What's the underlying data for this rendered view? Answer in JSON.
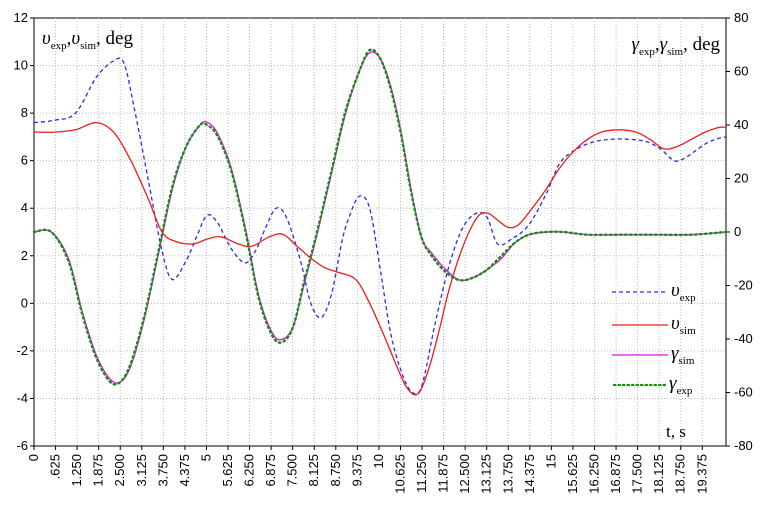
{
  "chart_data": {
    "type": "line",
    "ylabel_left": {
      "main1": "υ",
      "sub1": "exp",
      "sep": ",",
      "main2": "υ",
      "sub2": "sim",
      "unit": ", deg"
    },
    "ylabel_right": {
      "main1": "γ",
      "sub1": "exp",
      "sep": ",",
      "main2": "γ",
      "sub2": "sim",
      "unit": ", deg"
    },
    "xlabel": "t, s",
    "xlim": [
      0,
      20
    ],
    "ylim_left": [
      -6,
      12
    ],
    "ylim_right": [
      -80,
      80
    ],
    "y_ticks_left": [
      "-6",
      "-4",
      "-2",
      "0",
      "2",
      "4",
      "6",
      "8",
      "10",
      "12"
    ],
    "y_ticks_right": [
      "-80",
      "-60",
      "-40",
      "-20",
      "0",
      "20",
      "40",
      "60",
      "80"
    ],
    "x_ticks": [
      "0",
      ".625",
      "1.250",
      "1.875",
      "2.500",
      "3.125",
      "3.750",
      "4.375",
      "5",
      "5.625",
      "6.250",
      "6.875",
      "7.500",
      "8.125",
      "8.750",
      "9.375",
      "10",
      "10.625",
      "11.250",
      "11.875",
      "12.500",
      "13.125",
      "13.750",
      "14.375",
      "15",
      "15.625",
      "16.250",
      "16.875",
      "17.500",
      "18.125",
      "18.750",
      "19.375"
    ],
    "grid": true,
    "legend_position": "right",
    "series": [
      {
        "name": {
          "main": "υ",
          "sub": "exp"
        },
        "axis": "left",
        "color": "#2a2ae8",
        "style": "dashed",
        "x": [
          0,
          0.6,
          1.2,
          1.8,
          2.3,
          2.6,
          2.9,
          3.3,
          3.7,
          4.0,
          4.4,
          4.7,
          5.0,
          5.3,
          5.7,
          6.1,
          6.4,
          6.7,
          7.0,
          7.3,
          7.7,
          8.0,
          8.3,
          8.6,
          8.9,
          9.1,
          9.4,
          9.7,
          10.0,
          10.3,
          10.6,
          10.9,
          11.2,
          11.6,
          12.0,
          12.4,
          12.8,
          13.1,
          13.4,
          13.8,
          14.3,
          14.8,
          15.2,
          15.7,
          16.2,
          16.7,
          17.2,
          17.7,
          18.1,
          18.5,
          18.8,
          19.1,
          19.4,
          19.7,
          20.0
        ],
        "y": [
          7.6,
          7.7,
          8.0,
          9.5,
          10.2,
          10.1,
          8.2,
          5.2,
          2.2,
          1.0,
          1.8,
          2.8,
          3.7,
          3.4,
          2.3,
          1.7,
          2.2,
          3.2,
          4.0,
          3.6,
          1.8,
          0.0,
          -0.6,
          0.4,
          2.6,
          3.6,
          4.5,
          4.0,
          1.5,
          -1.2,
          -2.8,
          -3.7,
          -3.5,
          -0.8,
          1.6,
          3.2,
          3.8,
          3.6,
          2.5,
          2.7,
          3.3,
          4.6,
          5.9,
          6.5,
          6.8,
          6.9,
          6.9,
          6.8,
          6.5,
          6.0,
          6.1,
          6.4,
          6.7,
          6.9,
          7.0
        ]
      },
      {
        "name": {
          "main": "υ",
          "sub": "sim"
        },
        "axis": "left",
        "color": "#ee1c1c",
        "style": "solid",
        "x": [
          0,
          0.6,
          1.2,
          1.8,
          2.3,
          2.8,
          3.3,
          3.7,
          4.1,
          4.6,
          5.0,
          5.4,
          5.9,
          6.3,
          6.8,
          7.2,
          7.6,
          8.0,
          8.4,
          8.8,
          9.3,
          9.7,
          10.1,
          10.5,
          10.8,
          11.1,
          11.4,
          11.7,
          12.0,
          12.4,
          12.8,
          13.1,
          13.4,
          13.7,
          14.0,
          14.4,
          14.8,
          15.2,
          15.6,
          16.0,
          16.4,
          16.9,
          17.4,
          17.8,
          18.2,
          18.6,
          19.0,
          19.4,
          19.8,
          20.0
        ],
        "y": [
          7.2,
          7.2,
          7.3,
          7.6,
          7.2,
          6.0,
          4.4,
          3.0,
          2.6,
          2.5,
          2.7,
          2.8,
          2.5,
          2.4,
          2.8,
          2.9,
          2.4,
          1.9,
          1.5,
          1.3,
          1.0,
          0.0,
          -1.3,
          -2.7,
          -3.6,
          -3.8,
          -2.8,
          -1.2,
          0.6,
          2.4,
          3.6,
          3.8,
          3.5,
          3.2,
          3.3,
          4.0,
          4.8,
          5.7,
          6.4,
          6.9,
          7.2,
          7.3,
          7.2,
          6.9,
          6.5,
          6.6,
          6.9,
          7.2,
          7.4,
          7.4
        ]
      },
      {
        "name": {
          "main": "γ",
          "sub": "sim"
        },
        "axis": "right",
        "color": "#e016e0",
        "style": "solid",
        "x": [
          0,
          0.5,
          1.0,
          1.4,
          1.8,
          2.2,
          2.5,
          2.8,
          3.2,
          3.6,
          4.0,
          4.4,
          4.8,
          5.0,
          5.3,
          5.7,
          6.1,
          6.5,
          6.9,
          7.2,
          7.5,
          7.8,
          8.2,
          8.6,
          9.0,
          9.4,
          9.7,
          10.0,
          10.3,
          10.6,
          10.9,
          11.2,
          11.5,
          11.9,
          12.3,
          12.7,
          13.1,
          13.5,
          13.9,
          14.3,
          14.8,
          15.3,
          16.0,
          17.0,
          18.0,
          19.0,
          20.0
        ],
        "y": [
          0,
          0,
          -10,
          -30,
          -46,
          -55,
          -56,
          -50,
          -32,
          -8,
          16,
          32,
          40,
          41,
          37,
          24,
          2,
          -24,
          -38,
          -40,
          -35,
          -20,
          0,
          22,
          44,
          60,
          67,
          65,
          55,
          38,
          16,
          -2,
          -8,
          -14,
          -18,
          -17,
          -14,
          -10,
          -4,
          -1,
          0,
          0,
          -1,
          -1,
          -1,
          -1,
          0
        ]
      },
      {
        "name": {
          "main": "γ",
          "sub": "exp"
        },
        "axis": "right",
        "color": "#1a8a1a",
        "style": "dotted",
        "x": [
          0,
          0.5,
          1.0,
          1.4,
          1.8,
          2.2,
          2.5,
          2.8,
          3.2,
          3.6,
          4.0,
          4.4,
          4.8,
          5.0,
          5.3,
          5.7,
          6.1,
          6.5,
          6.9,
          7.2,
          7.5,
          7.8,
          8.2,
          8.6,
          9.0,
          9.4,
          9.7,
          10.0,
          10.3,
          10.6,
          10.9,
          11.2,
          11.5,
          11.9,
          12.3,
          12.7,
          13.1,
          13.5,
          13.9,
          14.3,
          14.8,
          15.3,
          16.0,
          17.0,
          18.0,
          19.0,
          20.0
        ],
        "y": [
          0,
          0,
          -11,
          -31,
          -47,
          -56,
          -56,
          -49,
          -31,
          -7,
          17,
          32,
          40,
          40,
          36,
          23,
          1,
          -25,
          -39,
          -41,
          -35,
          -19,
          1,
          23,
          45,
          60,
          68,
          65,
          54,
          37,
          15,
          -2,
          -9,
          -15,
          -18,
          -17,
          -14,
          -9,
          -4,
          -1,
          0,
          0,
          -1,
          -1,
          -1,
          -1,
          0
        ]
      }
    ]
  }
}
